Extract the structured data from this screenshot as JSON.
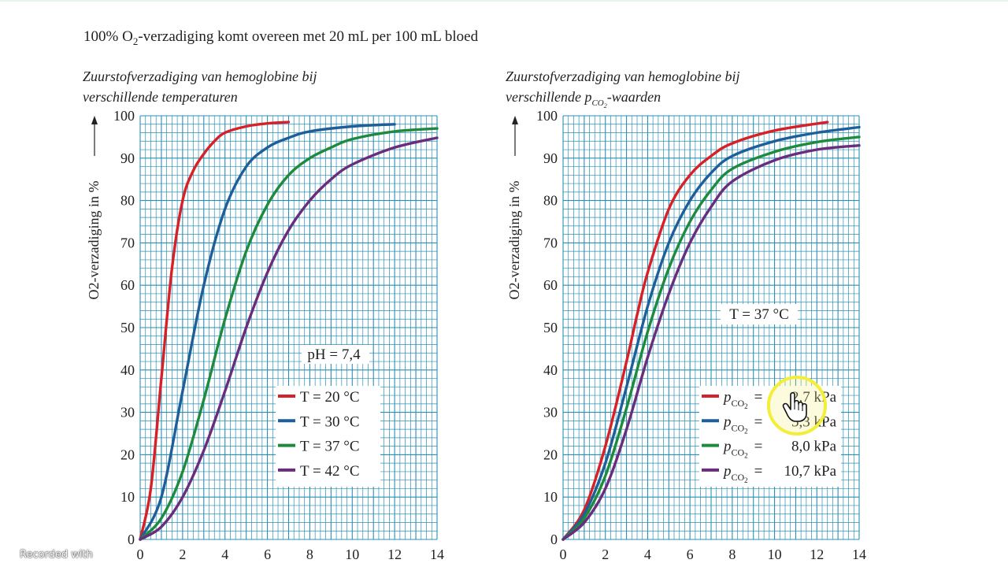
{
  "header": {
    "text_before": "100% O",
    "sub": "2",
    "text_after": "-verzadiging komt overeen met 20 mL per 100 mL bloed"
  },
  "chart_data": [
    {
      "type": "line",
      "title_line1": "Zuurstofverzadiging van hemoglobine bij",
      "title_line2": "verschillende temperaturen",
      "ylabel": "O2-verzadiging in %",
      "xlim": [
        0,
        14
      ],
      "ylim": [
        0,
        100
      ],
      "xticks": [
        "0",
        "2",
        "4",
        "6",
        "8",
        "10",
        "12",
        "14"
      ],
      "yticks": [
        "0",
        "10",
        "20",
        "30",
        "40",
        "50",
        "60",
        "70",
        "80",
        "90",
        "100"
      ],
      "grid": true,
      "annotation": "pH = 7,4",
      "series": [
        {
          "name": "T = 20 °C",
          "color": "#d62128",
          "x": [
            0,
            0.5,
            1,
            1.5,
            2,
            2.5,
            3,
            3.5,
            4,
            5,
            6,
            7
          ],
          "y": [
            0,
            12,
            38,
            64,
            80,
            87,
            91,
            94,
            96,
            97.5,
            98.2,
            98.5
          ]
        },
        {
          "name": "T = 30 °C",
          "color": "#1f5f99",
          "x": [
            0,
            1,
            2,
            3,
            4,
            5,
            6,
            7,
            8,
            10,
            12
          ],
          "y": [
            0,
            10,
            35,
            60,
            78,
            88,
            92.5,
            94.8,
            96.3,
            97.5,
            98
          ]
        },
        {
          "name": "T = 37 °C",
          "color": "#1e8a3e",
          "x": [
            0,
            1,
            2,
            3,
            4,
            5,
            6,
            7,
            8,
            9,
            10,
            12,
            14
          ],
          "y": [
            0,
            5,
            16,
            33,
            52,
            68,
            79,
            86,
            90,
            92.5,
            94.5,
            96.3,
            97
          ]
        },
        {
          "name": "T = 42 °C",
          "color": "#6a2c7d",
          "x": [
            0,
            1,
            2,
            3,
            4,
            5,
            6,
            7,
            8,
            9,
            10,
            12,
            14
          ],
          "y": [
            0,
            3,
            10,
            21,
            35,
            50,
            63,
            73,
            80,
            85,
            88.5,
            92.5,
            94.8
          ]
        }
      ]
    },
    {
      "type": "line",
      "title_line1": "Zuurstofverzadiging van hemoglobine bij",
      "title_line2_before": "verschillende ",
      "title_line2_p": "p",
      "title_line2_sub": "CO",
      "title_line2_subsub": "2",
      "title_line2_after": "-waarden",
      "ylabel": "O2-verzadiging in %",
      "xlim": [
        0,
        14
      ],
      "ylim": [
        0,
        100
      ],
      "xticks": [
        "0",
        "2",
        "4",
        "6",
        "8",
        "10",
        "12",
        "14"
      ],
      "yticks": [
        "0",
        "10",
        "20",
        "30",
        "40",
        "50",
        "60",
        "70",
        "80",
        "90",
        "100"
      ],
      "grid": true,
      "annotation": "T = 37 °C",
      "series": [
        {
          "name_p": "p",
          "name_sub": "CO",
          "name_subsub": "2",
          "name_eq": "=",
          "name_value": "2,7 kPa",
          "color": "#d62128",
          "x": [
            0,
            1,
            2,
            3,
            3.5,
            4,
            5,
            6,
            7,
            8,
            10,
            12.5
          ],
          "y": [
            0,
            7,
            22,
            42,
            53,
            63,
            78,
            86,
            90.5,
            93.5,
            96.5,
            98.5
          ]
        },
        {
          "name_p": "p",
          "name_sub": "CO",
          "name_subsub": "2",
          "name_eq": "=",
          "name_value": "5,3 kPa",
          "color": "#1f5f99",
          "x": [
            0,
            1,
            2,
            3,
            4,
            5,
            6,
            7,
            8,
            10,
            12,
            14
          ],
          "y": [
            0,
            6,
            18,
            36,
            55,
            70,
            80,
            86.5,
            90.5,
            94,
            96,
            97.3
          ]
        },
        {
          "name_p": "p",
          "name_sub": "CO",
          "name_subsub": "2",
          "name_eq": "=",
          "name_value": "8,0 kPa",
          "color": "#1e8a3e",
          "x": [
            0,
            1,
            2,
            3,
            4,
            5,
            6,
            7,
            8,
            10,
            12,
            14
          ],
          "y": [
            0,
            5,
            15,
            31,
            49,
            64,
            75,
            82.5,
            87.5,
            91.5,
            93.8,
            95
          ]
        },
        {
          "name_p": "p",
          "name_sub": "CO",
          "name_subsub": "2",
          "name_eq": "=",
          "name_value": "10,7 kPa",
          "color": "#6a2c7d",
          "x": [
            0,
            1,
            2,
            3,
            4,
            5,
            6,
            7,
            8,
            10,
            12,
            14
          ],
          "y": [
            0,
            4,
            12,
            26,
            43,
            58,
            70,
            78.5,
            84.5,
            89.5,
            92,
            93
          ]
        }
      ]
    }
  ],
  "cursor": {
    "icon": "hand-pointer-icon",
    "highlight_color": "#f3ee3a"
  },
  "watermark": "Recorded with"
}
